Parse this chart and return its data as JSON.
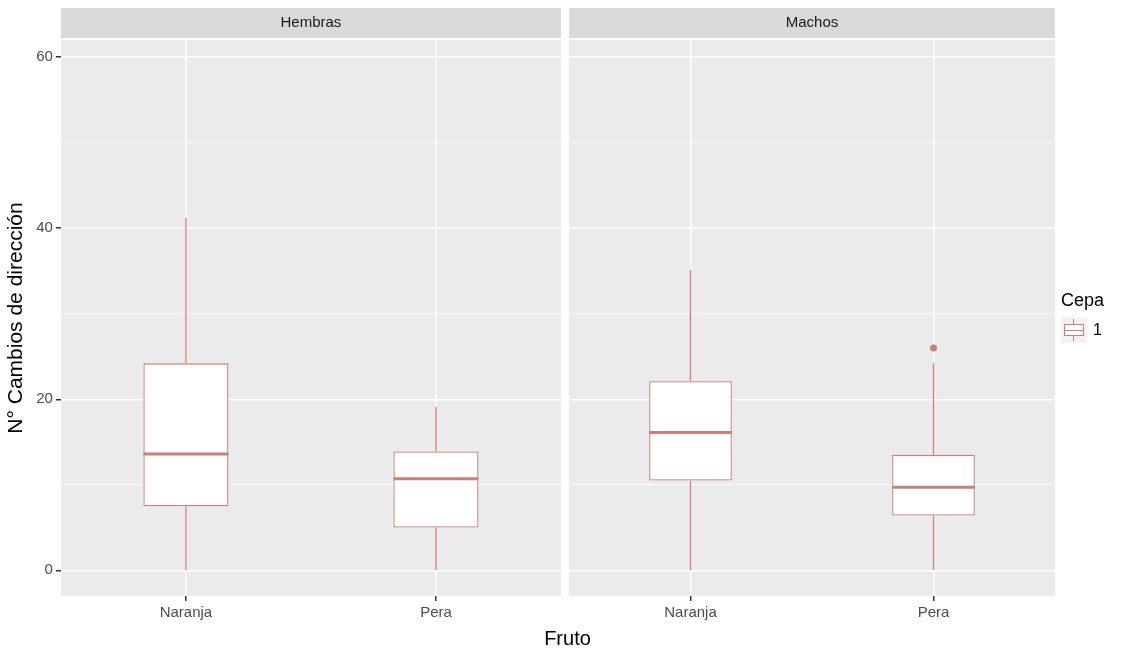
{
  "chart_data": [
    {
      "type": "box",
      "title": "Hembras",
      "xlabel": "Fruto",
      "ylabel": "N° Cambios de dirección",
      "categories": [
        "Naranja",
        "Pera"
      ],
      "ylim": [
        -3,
        62
      ],
      "yticks": [
        0,
        20,
        40,
        60
      ],
      "grid": true,
      "legend": false,
      "series": [
        {
          "color": "#cd7e76",
          "boxes": [
            {
              "low": 0,
              "q1": 7.5,
              "median": 13.6,
              "q3": 24.2,
              "high": 41.2
            },
            {
              "low": 0,
              "q1": 5.0,
              "median": 10.7,
              "q3": 13.9,
              "high": 19.1
            }
          ]
        }
      ]
    },
    {
      "type": "box",
      "title": "Machos",
      "categories": [
        "Naranja",
        "Pera"
      ],
      "ylim": [
        -3,
        62
      ],
      "yticks": [
        0,
        20,
        40,
        60
      ],
      "grid": true,
      "tick_labels": "x",
      "legend": "right",
      "legend_title": "Cepa",
      "series": [
        {
          "name": "1",
          "color": "#cd7e76",
          "boxes": [
            {
              "low": 0,
              "q1": 10.5,
              "median": 16.1,
              "q3": 22.1,
              "high": 35.1
            },
            {
              "low": 0,
              "q1": 6.4,
              "median": 9.7,
              "q3": 13.5,
              "high": 24.2,
              "outliers": [
                26.0
              ]
            }
          ]
        }
      ]
    }
  ]
}
